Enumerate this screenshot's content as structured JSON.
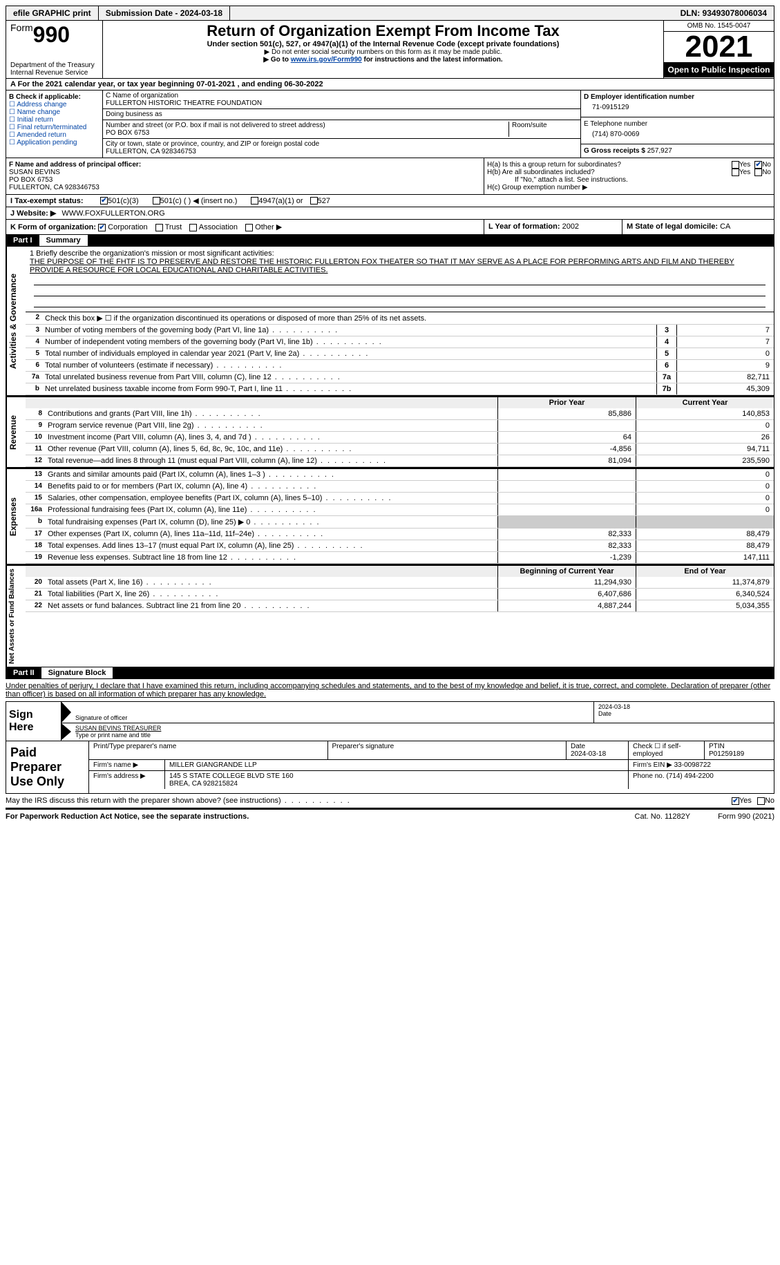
{
  "topbar": {
    "efile": "efile GRAPHIC print",
    "submission": "Submission Date - 2024-03-18",
    "dln": "DLN: 93493078006034"
  },
  "header": {
    "form_prefix": "Form",
    "form_num": "990",
    "dept": "Department of the Treasury\nInternal Revenue Service",
    "title": "Return of Organization Exempt From Income Tax",
    "subtitle": "Under section 501(c), 527, or 4947(a)(1) of the Internal Revenue Code (except private foundations)",
    "note1": "▶ Do not enter social security numbers on this form as it may be made public.",
    "note2_pre": "▶ Go to ",
    "note2_link": "www.irs.gov/Form990",
    "note2_post": " for instructions and the latest information.",
    "omb": "OMB No. 1545-0047",
    "year": "2021",
    "inspection": "Open to Public Inspection"
  },
  "rowA": "A For the 2021 calendar year, or tax year beginning 07-01-2021   , and ending 06-30-2022",
  "colB": {
    "title": "B Check if applicable:",
    "opts": [
      "☐ Address change",
      "☐ Name change",
      "☐ Initial return",
      "☐ Final return/terminated",
      "☐ Amended return",
      "☐ Application pending"
    ]
  },
  "colC": {
    "name_lbl": "C Name of organization",
    "name": "FULLERTON HISTORIC THEATRE FOUNDATION",
    "dba_lbl": "Doing business as",
    "dba": "",
    "street_lbl": "Number and street (or P.O. box if mail is not delivered to street address)",
    "street": "PO BOX 6753",
    "room_lbl": "Room/suite",
    "city_lbl": "City or town, state or province, country, and ZIP or foreign postal code",
    "city": "FULLERTON, CA  928346753"
  },
  "colD": {
    "d_lbl": "D Employer identification number",
    "d_val": "71-0915129",
    "e_lbl": "E Telephone number",
    "e_val": "(714) 870-0069",
    "g_lbl": "G Gross receipts $",
    "g_val": "257,927"
  },
  "colF": {
    "lbl": "F Name and address of principal officer:",
    "name": "SUSAN BEVINS",
    "addr1": "PO BOX 6753",
    "addr2": "FULLERTON, CA  928346753"
  },
  "colH": {
    "ha": "H(a)  Is this a group return for subordinates?",
    "hb": "H(b)  Are all subordinates included?",
    "hb_note": "If \"No,\" attach a list. See instructions.",
    "hc": "H(c)  Group exemption number ▶"
  },
  "rowI": "I   Tax-exempt status:",
  "rowI_opts": [
    "501(c)(3)",
    "501(c) (  ) ◀ (insert no.)",
    "4947(a)(1) or",
    "527"
  ],
  "rowJ_lbl": "J   Website: ▶",
  "rowJ_val": "WWW.FOXFULLERTON.ORG",
  "rowK": {
    "k_lbl": "K Form of organization:",
    "k_opts": [
      "Corporation",
      "Trust",
      "Association",
      "Other ▶"
    ],
    "l_lbl": "L Year of formation:",
    "l_val": "2002",
    "m_lbl": "M State of legal domicile:",
    "m_val": "CA"
  },
  "part1": {
    "num": "Part I",
    "title": "Summary",
    "sidebar1": "Activities & Governance",
    "sidebar2": "Revenue",
    "sidebar3": "Expenses",
    "sidebar4": "Net Assets or Fund Balances",
    "mission_lbl": "1   Briefly describe the organization's mission or most significant activities:",
    "mission": "THE PURPOSE OF THE FHTF IS TO PRESERVE AND RESTORE THE HISTORIC FULLERTON FOX THEATER SO THAT IT MAY SERVE AS A PLACE FOR PERFORMING ARTS AND FILM AND THEREBY PROVIDE A RESOURCE FOR LOCAL EDUCATIONAL AND CHARITABLE ACTIVITIES.",
    "line2": "Check this box ▶ ☐  if the organization discontinued its operations or disposed of more than 25% of its net assets.",
    "lines_simple": [
      {
        "n": "3",
        "d": "Number of voting members of the governing body (Part VI, line 1a)",
        "box": "3",
        "v": "7"
      },
      {
        "n": "4",
        "d": "Number of independent voting members of the governing body (Part VI, line 1b)",
        "box": "4",
        "v": "7"
      },
      {
        "n": "5",
        "d": "Total number of individuals employed in calendar year 2021 (Part V, line 2a)",
        "box": "5",
        "v": "0"
      },
      {
        "n": "6",
        "d": "Total number of volunteers (estimate if necessary)",
        "box": "6",
        "v": "9"
      },
      {
        "n": "7a",
        "d": "Total unrelated business revenue from Part VIII, column (C), line 12",
        "box": "7a",
        "v": "82,711"
      },
      {
        "n": "b",
        "d": "Net unrelated business taxable income from Form 990-T, Part I, line 11",
        "box": "7b",
        "v": "45,309"
      }
    ],
    "hdr_prior": "Prior Year",
    "hdr_current": "Current Year",
    "rev_lines": [
      {
        "n": "8",
        "d": "Contributions and grants (Part VIII, line 1h)",
        "c1": "85,886",
        "c2": "140,853"
      },
      {
        "n": "9",
        "d": "Program service revenue (Part VIII, line 2g)",
        "c1": "",
        "c2": "0"
      },
      {
        "n": "10",
        "d": "Investment income (Part VIII, column (A), lines 3, 4, and 7d )",
        "c1": "64",
        "c2": "26"
      },
      {
        "n": "11",
        "d": "Other revenue (Part VIII, column (A), lines 5, 6d, 8c, 9c, 10c, and 11e)",
        "c1": "-4,856",
        "c2": "94,711"
      },
      {
        "n": "12",
        "d": "Total revenue—add lines 8 through 11 (must equal Part VIII, column (A), line 12)",
        "c1": "81,094",
        "c2": "235,590"
      }
    ],
    "exp_lines": [
      {
        "n": "13",
        "d": "Grants and similar amounts paid (Part IX, column (A), lines 1–3 )",
        "c1": "",
        "c2": "0"
      },
      {
        "n": "14",
        "d": "Benefits paid to or for members (Part IX, column (A), line 4)",
        "c1": "",
        "c2": "0"
      },
      {
        "n": "15",
        "d": "Salaries, other compensation, employee benefits (Part IX, column (A), lines 5–10)",
        "c1": "",
        "c2": "0"
      },
      {
        "n": "16a",
        "d": "Professional fundraising fees (Part IX, column (A), line 11e)",
        "c1": "",
        "c2": "0"
      },
      {
        "n": "b",
        "d": "Total fundraising expenses (Part IX, column (D), line 25) ▶ 0",
        "c1": "shaded",
        "c2": "shaded"
      },
      {
        "n": "17",
        "d": "Other expenses (Part IX, column (A), lines 11a–11d, 11f–24e)",
        "c1": "82,333",
        "c2": "88,479"
      },
      {
        "n": "18",
        "d": "Total expenses. Add lines 13–17 (must equal Part IX, column (A), line 25)",
        "c1": "82,333",
        "c2": "88,479"
      },
      {
        "n": "19",
        "d": "Revenue less expenses. Subtract line 18 from line 12",
        "c1": "-1,239",
        "c2": "147,111"
      }
    ],
    "hdr_begin": "Beginning of Current Year",
    "hdr_end": "End of Year",
    "net_lines": [
      {
        "n": "20",
        "d": "Total assets (Part X, line 16)",
        "c1": "11,294,930",
        "c2": "11,374,879"
      },
      {
        "n": "21",
        "d": "Total liabilities (Part X, line 26)",
        "c1": "6,407,686",
        "c2": "6,340,524"
      },
      {
        "n": "22",
        "d": "Net assets or fund balances. Subtract line 21 from line 20",
        "c1": "4,887,244",
        "c2": "5,034,355"
      }
    ]
  },
  "part2": {
    "num": "Part II",
    "title": "Signature Block",
    "perjury": "Under penalties of perjury, I declare that I have examined this return, including accompanying schedules and statements, and to the best of my knowledge and belief, it is true, correct, and complete. Declaration of preparer (other than officer) is based on all information of which preparer has any knowledge."
  },
  "sign": {
    "left": "Sign Here",
    "sig_lbl": "Signature of officer",
    "date": "2024-03-18",
    "date_lbl": "Date",
    "name": "SUSAN BEVINS TREASURER",
    "name_lbl": "Type or print name and title"
  },
  "paid": {
    "left": "Paid Preparer Use Only",
    "r1": {
      "a": "Print/Type preparer's name",
      "b": "Preparer's signature",
      "c_lbl": "Date",
      "c": "2024-03-18",
      "d": "Check ☐ if self-employed",
      "e_lbl": "PTIN",
      "e": "P01259189"
    },
    "r2": {
      "a": "Firm's name    ▶",
      "b": "MILLER GIANGRANDE LLP",
      "c": "Firm's EIN ▶",
      "d": "33-0098722"
    },
    "r3": {
      "a": "Firm's address ▶",
      "b": "145 S STATE COLLEGE BLVD STE 160",
      "c": "Phone no.",
      "d": "(714) 494-2200"
    },
    "r3b": "BREA, CA  928215824"
  },
  "bottom": {
    "q": "May the IRS discuss this return with the preparer shown above? (see instructions)",
    "paperwork": "For Paperwork Reduction Act Notice, see the separate instructions.",
    "cat": "Cat. No. 11282Y",
    "form": "Form 990 (2021)"
  }
}
